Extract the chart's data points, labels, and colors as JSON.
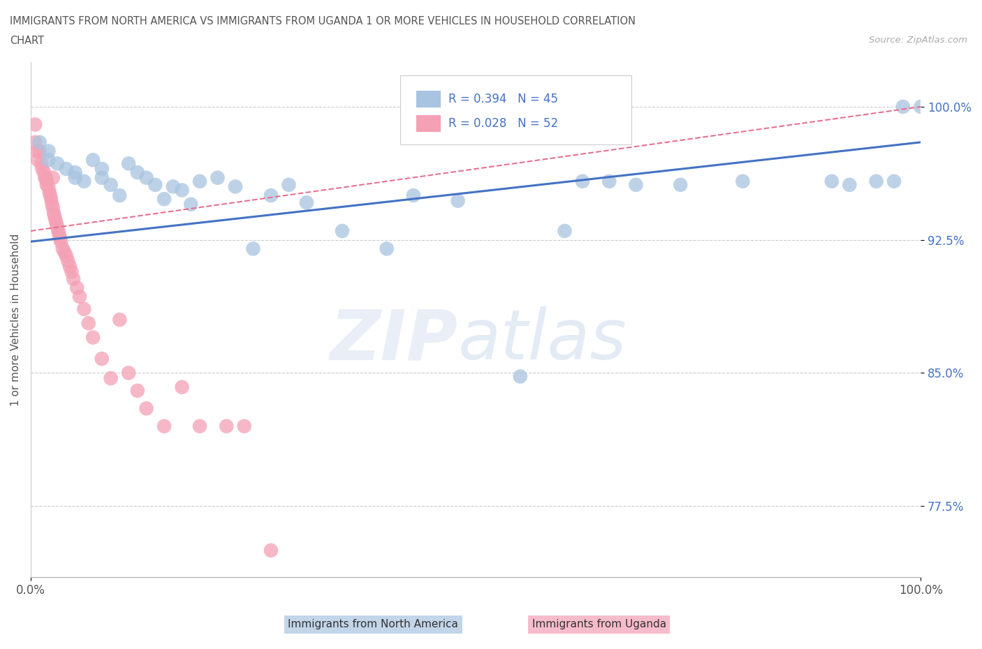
{
  "title_line1": "IMMIGRANTS FROM NORTH AMERICA VS IMMIGRANTS FROM UGANDA 1 OR MORE VEHICLES IN HOUSEHOLD CORRELATION",
  "title_line2": "CHART",
  "source_text": "Source: ZipAtlas.com",
  "ylabel": "1 or more Vehicles in Household",
  "xmin": 0.0,
  "xmax": 1.0,
  "ymin": 0.735,
  "ymax": 1.025,
  "yticks": [
    0.775,
    0.85,
    0.925,
    1.0
  ],
  "ytick_labels": [
    "77.5%",
    "85.0%",
    "92.5%",
    "100.0%"
  ],
  "xticks": [
    0.0,
    1.0
  ],
  "xtick_labels": [
    "0.0%",
    "100.0%"
  ],
  "legend_r_north": "0.394",
  "legend_n_north": "45",
  "legend_r_uganda": "0.028",
  "legend_n_uganda": "52",
  "north_america_color": "#a8c4e0",
  "uganda_color": "#f4a0b5",
  "north_america_line_color": "#4472c4",
  "uganda_line_color": "#e87090",
  "watermark_zip": "ZIP",
  "watermark_atlas": "atlas",
  "north_america_x": [
    0.01,
    0.02,
    0.02,
    0.03,
    0.04,
    0.05,
    0.05,
    0.06,
    0.07,
    0.08,
    0.08,
    0.09,
    0.1,
    0.11,
    0.12,
    0.13,
    0.14,
    0.15,
    0.16,
    0.17,
    0.18,
    0.19,
    0.21,
    0.23,
    0.25,
    0.27,
    0.29,
    0.31,
    0.35,
    0.4,
    0.43,
    0.48,
    0.55,
    0.6,
    0.62,
    0.65,
    0.68,
    0.73,
    0.8,
    0.9,
    0.92,
    0.95,
    0.97,
    0.98,
    1.0
  ],
  "north_america_y": [
    0.98,
    0.975,
    0.97,
    0.968,
    0.965,
    0.963,
    0.96,
    0.958,
    0.97,
    0.965,
    0.96,
    0.956,
    0.95,
    0.968,
    0.963,
    0.96,
    0.956,
    0.948,
    0.955,
    0.953,
    0.945,
    0.958,
    0.96,
    0.955,
    0.92,
    0.95,
    0.956,
    0.946,
    0.93,
    0.92,
    0.95,
    0.947,
    0.848,
    0.93,
    0.958,
    0.958,
    0.956,
    0.956,
    0.958,
    0.958,
    0.956,
    0.958,
    0.958,
    1.0,
    1.0
  ],
  "uganda_x": [
    0.005,
    0.005,
    0.007,
    0.008,
    0.01,
    0.012,
    0.013,
    0.015,
    0.016,
    0.017,
    0.018,
    0.018,
    0.02,
    0.021,
    0.022,
    0.023,
    0.024,
    0.025,
    0.025,
    0.026,
    0.027,
    0.028,
    0.029,
    0.03,
    0.031,
    0.032,
    0.033,
    0.034,
    0.036,
    0.038,
    0.04,
    0.042,
    0.044,
    0.046,
    0.048,
    0.052,
    0.055,
    0.06,
    0.065,
    0.07,
    0.08,
    0.09,
    0.1,
    0.11,
    0.12,
    0.13,
    0.15,
    0.17,
    0.19,
    0.22,
    0.24,
    0.27
  ],
  "uganda_y": [
    0.99,
    0.98,
    0.975,
    0.97,
    0.975,
    0.968,
    0.965,
    0.963,
    0.96,
    0.96,
    0.958,
    0.956,
    0.955,
    0.952,
    0.95,
    0.948,
    0.945,
    0.943,
    0.96,
    0.94,
    0.938,
    0.936,
    0.934,
    0.932,
    0.93,
    0.928,
    0.926,
    0.924,
    0.92,
    0.918,
    0.916,
    0.913,
    0.91,
    0.907,
    0.903,
    0.898,
    0.893,
    0.886,
    0.878,
    0.87,
    0.858,
    0.847,
    0.88,
    0.85,
    0.84,
    0.83,
    0.82,
    0.842,
    0.82,
    0.82,
    0.82,
    0.75
  ]
}
